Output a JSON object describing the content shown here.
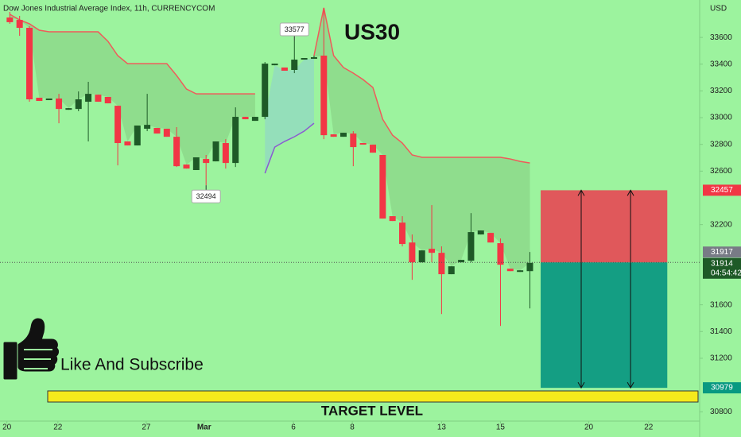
{
  "chart_data": {
    "type": "candlestick",
    "header": "Dow Jones Industrial Average Index, 11h, CURRENCYCOM",
    "currency": "USD",
    "title": "US30",
    "cta": "Like And Subscribe",
    "target_label": "TARGET LEVEL",
    "up_color": "#1e5a27",
    "down_color": "#f23645",
    "x": [
      1,
      2,
      3,
      4,
      5,
      6,
      7,
      8,
      9,
      10,
      11,
      12,
      13,
      14,
      15,
      16,
      17,
      18,
      19,
      20,
      21,
      22,
      23,
      24,
      25,
      26,
      27,
      28,
      29,
      30,
      31,
      32,
      33,
      34,
      35,
      36,
      37,
      38,
      39,
      40,
      41,
      42,
      43,
      44,
      45,
      46,
      47,
      48,
      49,
      50,
      51,
      52,
      53,
      54
    ],
    "open": [
      33749,
      33731,
      33672,
      33149,
      33131,
      33143,
      33059,
      33065,
      33119,
      33172,
      33155,
      33089,
      32822,
      32792,
      32917,
      32923,
      32917,
      32857,
      32649,
      32608,
      32691,
      32673,
      32810,
      32661,
      33006,
      32976,
      33006,
      33392,
      33375,
      33357,
      33434,
      33440,
      33464,
      32875,
      32857,
      32881,
      32810,
      32798,
      32721,
      32263,
      32215,
      32066,
      31918,
      32019,
      31989,
      31829,
      31918,
      31930,
      32126,
      32138,
      32061,
      31870,
      31846,
      31852
    ],
    "high": [
      33791,
      33761,
      33684,
      33149,
      33143,
      33178,
      33071,
      33196,
      33268,
      33172,
      33155,
      33089,
      32822,
      32941,
      33178,
      32923,
      32917,
      32929,
      32649,
      32703,
      32721,
      32822,
      32839,
      33077,
      33006,
      33006,
      33416,
      33404,
      33375,
      33577,
      33446,
      33464,
      33821,
      32875,
      32887,
      32899,
      32810,
      32798,
      32721,
      32263,
      32263,
      32126,
      32007,
      32346,
      32037,
      31888,
      31936,
      32286,
      32156,
      32138,
      32096,
      31870,
      31858,
      31995
    ],
    "low": [
      33702,
      33612,
      33119,
      33125,
      33131,
      32958,
      33059,
      33048,
      32822,
      33119,
      33107,
      32643,
      32792,
      32792,
      32899,
      32881,
      32857,
      32631,
      32619,
      32608,
      32494,
      32673,
      32619,
      32631,
      32988,
      32976,
      32988,
      33392,
      33351,
      33333,
      33434,
      33440,
      32839,
      32857,
      32857,
      32637,
      32798,
      32738,
      32245,
      32227,
      32037,
      31787,
      31918,
      31918,
      31531,
      31829,
      31918,
      31918,
      32126,
      32066,
      31442,
      31852,
      31846,
      31573
    ],
    "close": [
      33714,
      33672,
      33137,
      33125,
      33143,
      33065,
      33071,
      33137,
      33178,
      33119,
      33107,
      32810,
      32792,
      32941,
      32946,
      32881,
      32857,
      32637,
      32619,
      32703,
      32661,
      32822,
      32661,
      33006,
      32988,
      33006,
      33404,
      33404,
      33351,
      33434,
      33446,
      33452,
      32869,
      32857,
      32887,
      32780,
      32798,
      32738,
      32245,
      32227,
      32055,
      31918,
      32007,
      31989,
      31829,
      31888,
      31936,
      32144,
      32156,
      32066,
      31900,
      31852,
      31858,
      31914
    ],
    "overlays": [
      {
        "color": "#f05a5a",
        "fill": "rgba(120,180,110,0.35)",
        "side": "above",
        "values": [
          33773,
          33731,
          33702,
          33654,
          33642,
          33642,
          33642,
          33642,
          33642,
          33642,
          33571,
          33464,
          33404,
          33404,
          33404,
          33404,
          33404,
          33315,
          33214,
          33178,
          33178,
          33178,
          33178,
          33178,
          33178,
          33178,
          null,
          null,
          null,
          null,
          null,
          33464,
          33821,
          33464,
          33375,
          33333,
          33285,
          33226,
          32988,
          32869,
          32810,
          32721,
          32703,
          32703,
          32703,
          32703,
          32703,
          32703,
          32703,
          32703,
          32703,
          32691,
          32673,
          32661
        ]
      },
      {
        "color": "#8a5bd0",
        "fill": "rgba(140,200,220,0.45)",
        "side": "below",
        "values": [
          null,
          null,
          null,
          null,
          null,
          null,
          null,
          null,
          null,
          null,
          null,
          null,
          null,
          null,
          null,
          null,
          null,
          null,
          null,
          null,
          null,
          null,
          null,
          null,
          null,
          null,
          32584,
          32780,
          32822,
          32857,
          32899,
          32958,
          null,
          null,
          null,
          null,
          null,
          null,
          null,
          null,
          null,
          null,
          null,
          null,
          null,
          null,
          null,
          null,
          null,
          null,
          null,
          null,
          null,
          null
        ]
      }
    ],
    "annotations": [
      {
        "x": 30,
        "value": 33577,
        "side": "above"
      },
      {
        "x": 21,
        "value": 32494,
        "side": "below"
      }
    ],
    "position": {
      "x": [
        55.1,
        68
      ],
      "entry": 31917,
      "stop": 32457,
      "target": 30979,
      "stop_color": "#e0585b",
      "target_color": "#149e83"
    },
    "price_tags": [
      {
        "value": 32457,
        "color": "#f23645"
      },
      {
        "value": 31917,
        "color": "#787b86"
      },
      {
        "value": 31914,
        "color": "#1e5a27",
        "countdown": "04:54:42"
      },
      {
        "value": 30979,
        "color": "#089981"
      }
    ],
    "xlim": [
      0,
      71.3
    ],
    "xticks": [
      {
        "value": 0.7,
        "label": "20"
      },
      {
        "value": 5.9,
        "label": "22"
      },
      {
        "value": 14.9,
        "label": "27"
      },
      {
        "value": 20.8,
        "label": "Mar"
      },
      {
        "value": 29.9,
        "label": "6"
      },
      {
        "value": 35.9,
        "label": "8"
      },
      {
        "value": 45,
        "label": "13"
      },
      {
        "value": 51,
        "label": "15"
      },
      {
        "value": 60,
        "label": "20"
      },
      {
        "value": 66.1,
        "label": "22"
      }
    ],
    "ylim": [
      30730,
      33880
    ],
    "yticks": [
      33600,
      33400,
      33200,
      33000,
      32800,
      32600,
      32200,
      31600,
      31400,
      31200,
      30800
    ]
  }
}
